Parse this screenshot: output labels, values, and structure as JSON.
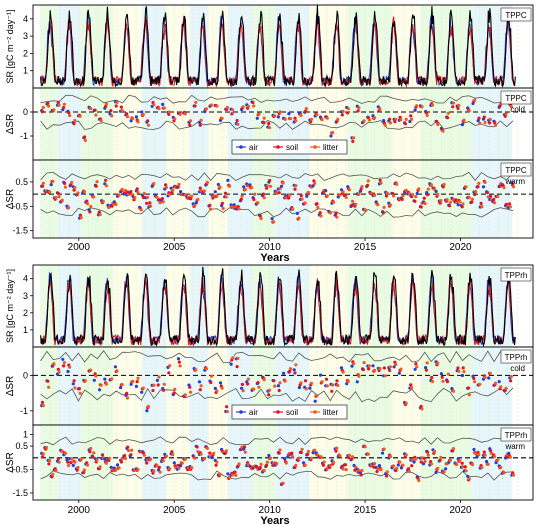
{
  "figure": {
    "xlabel": "Years",
    "years": [
      "2000",
      "2005",
      "2010",
      "2015",
      "2020"
    ]
  },
  "colors": {
    "tower": "#000000",
    "air": "#1f3fdc",
    "soil": "#e8121c",
    "litter": "#f05a1e",
    "band": "#555555"
  },
  "periods": [
    {
      "c": "#eafbe3",
      "a": 1998.0,
      "b": 1998.9
    },
    {
      "c": "#e6f6fb",
      "a": 1998.9,
      "b": 2000.1
    },
    {
      "c": "#eafbe3",
      "a": 2000.1,
      "b": 2001.8
    },
    {
      "c": "#fdfdea",
      "a": 2001.8,
      "b": 2003.3
    },
    {
      "c": "#e6f6fb",
      "a": 2003.3,
      "b": 2004.6
    },
    {
      "c": "#fdfdea",
      "a": 2004.6,
      "b": 2005.8
    },
    {
      "c": "#e6f6fb",
      "a": 2005.8,
      "b": 2006.8
    },
    {
      "c": "#fdfdea",
      "a": 2006.8,
      "b": 2007.8
    },
    {
      "c": "#e6f6fb",
      "a": 2007.8,
      "b": 2009.1
    },
    {
      "c": "#eafbe3",
      "a": 2009.1,
      "b": 2010.3
    },
    {
      "c": "#e6f6fb",
      "a": 2010.3,
      "b": 2012.1
    },
    {
      "c": "#fdfdea",
      "a": 2012.1,
      "b": 2014.1
    },
    {
      "c": "#eafbe3",
      "a": 2014.1,
      "b": 2016.4
    },
    {
      "c": "#fdfdea",
      "a": 2016.4,
      "b": 2017.9
    },
    {
      "c": "#eafbe3",
      "a": 2017.9,
      "b": 2019.5
    },
    {
      "c": "#eafbe3",
      "a": 2019.5,
      "b": 2020.6
    },
    {
      "c": "#e6f6fb",
      "a": 2020.6,
      "b": 2022.7
    }
  ],
  "legend": [
    "air",
    "soil",
    "litter"
  ],
  "chart_data": [
    {
      "type": "line",
      "label": "TPPC",
      "tag": "",
      "ylabel": "SR [gC m⁻² day⁻¹]",
      "ylim": [
        0,
        4.8
      ],
      "yticks": [
        1,
        2,
        3,
        4
      ],
      "legend": false
    },
    {
      "type": "scatter",
      "label": "TPPC",
      "tag": "cold",
      "ylabel": "ΔSR",
      "ylim": [
        -2.0,
        1.0
      ],
      "yticks": [
        -1,
        0
      ],
      "legend": true
    },
    {
      "type": "scatter",
      "label": "TPPC",
      "tag": "warm",
      "ylabel": "ΔSR",
      "ylim": [
        -1.8,
        1.4
      ],
      "yticks": [
        -1.5,
        -0.5,
        0.5
      ],
      "legend": false
    },
    {
      "type": "line",
      "label": "TPPrh",
      "tag": "",
      "ylabel": "SR [gC m⁻² day⁻¹]",
      "ylim": [
        0,
        4.8
      ],
      "yticks": [
        1,
        2,
        3,
        4
      ],
      "legend": false
    },
    {
      "type": "scatter",
      "label": "TPPrh",
      "tag": "cold",
      "ylabel": "ΔSR",
      "ylim": [
        -1.4,
        0.8
      ],
      "yticks": [
        -1,
        0
      ],
      "legend": true
    },
    {
      "type": "scatter",
      "label": "TPPrh",
      "tag": "warm",
      "ylabel": "ΔSR",
      "ylim": [
        -1.8,
        1.4
      ],
      "yticks": [
        -1.5,
        -0.5,
        0.5,
        1.0
      ],
      "legend": false
    }
  ]
}
